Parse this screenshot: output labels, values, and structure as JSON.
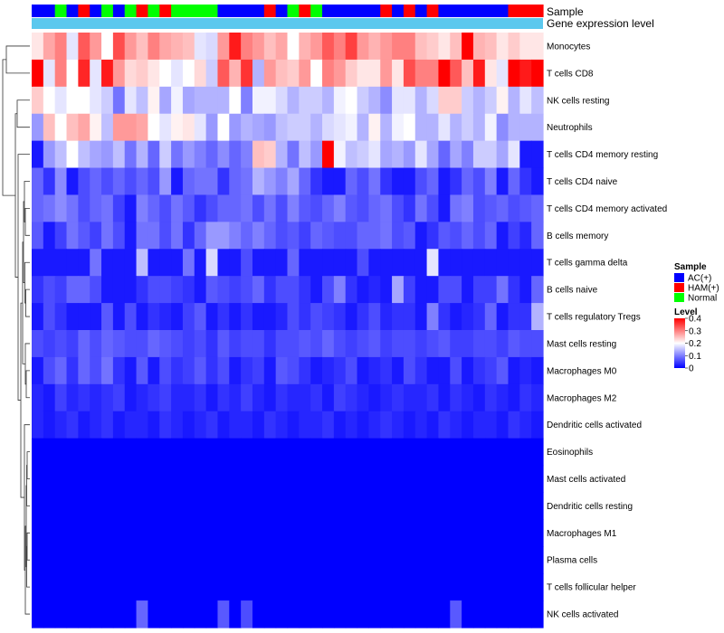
{
  "chart_data": {
    "type": "heatmap",
    "annotation_titles": [
      "Sample",
      "Gene expression level"
    ],
    "rows": [
      "Monocytes",
      "T cells CD8",
      "NK cells resting",
      "Neutrophils",
      "T cells CD4 memory resting",
      "T cells CD4 naive",
      "T cells CD4 memory activated",
      "B cells memory",
      "T cells gamma delta",
      "B cells naive",
      "T cells regulatory  Tregs",
      "Mast cells resting",
      "Macrophages M0",
      "Macrophages M2",
      "Dendritic cells activated",
      "Eosinophils",
      "Mast cells activated",
      "Dendritic cells resting",
      "Macrophages M1",
      "Plasma cells",
      "T cells follicular helper",
      "NK cells activated"
    ],
    "sample_groups": [
      "AC(+)",
      "AC(+)",
      "Normal",
      "AC(+)",
      "HAM(+)",
      "AC(+)",
      "Normal",
      "AC(+)",
      "Normal",
      "HAM(+)",
      "Normal",
      "HAM(+)",
      "Normal",
      "Normal",
      "Normal",
      "Normal",
      "AC(+)",
      "AC(+)",
      "AC(+)",
      "AC(+)",
      "HAM(+)",
      "AC(+)",
      "Normal",
      "HAM(+)",
      "Normal",
      "AC(+)",
      "AC(+)",
      "AC(+)",
      "AC(+)",
      "AC(+)",
      "HAM(+)",
      "AC(+)",
      "HAM(+)",
      "AC(+)",
      "HAM(+)",
      "AC(+)",
      "AC(+)",
      "AC(+)",
      "AC(+)",
      "AC(+)",
      "AC(+)",
      "HAM(+)",
      "HAM(+)",
      "HAM(+)"
    ],
    "values": [
      [
        0.22,
        0.27,
        0.3,
        0.18,
        0.33,
        0.28,
        0.2,
        0.34,
        0.28,
        0.25,
        0.3,
        0.27,
        0.26,
        0.25,
        0.18,
        0.17,
        0.28,
        0.38,
        0.3,
        0.28,
        0.25,
        0.27,
        0.2,
        0.26,
        0.28,
        0.33,
        0.3,
        0.35,
        0.28,
        0.26,
        0.28,
        0.3,
        0.3,
        0.25,
        0.24,
        0.22,
        0.25,
        0.4,
        0.26,
        0.25,
        0.22,
        0.24,
        0.22,
        0.22
      ],
      [
        0.4,
        0.18,
        0.3,
        0.2,
        0.37,
        0.18,
        0.38,
        0.28,
        0.23,
        0.24,
        0.22,
        0.2,
        0.18,
        0.2,
        0.23,
        0.16,
        0.33,
        0.26,
        0.36,
        0.14,
        0.28,
        0.25,
        0.24,
        0.28,
        0.2,
        0.3,
        0.28,
        0.24,
        0.22,
        0.22,
        0.28,
        0.22,
        0.34,
        0.3,
        0.3,
        0.4,
        0.33,
        0.25,
        0.38,
        0.22,
        0.18,
        0.4,
        0.38,
        0.4
      ],
      [
        0.24,
        0.2,
        0.18,
        0.2,
        0.2,
        0.18,
        0.16,
        0.09,
        0.18,
        0.15,
        0.21,
        0.13,
        0.19,
        0.13,
        0.14,
        0.14,
        0.14,
        0.2,
        0.1,
        0.19,
        0.19,
        0.17,
        0.14,
        0.16,
        0.16,
        0.14,
        0.19,
        0.2,
        0.16,
        0.14,
        0.11,
        0.18,
        0.18,
        0.14,
        0.17,
        0.24,
        0.24,
        0.16,
        0.14,
        0.16,
        0.21,
        0.14,
        0.18,
        0.15
      ],
      [
        0.12,
        0.25,
        0.2,
        0.25,
        0.27,
        0.21,
        0.15,
        0.28,
        0.28,
        0.27,
        0.2,
        0.18,
        0.21,
        0.22,
        0.18,
        0.12,
        0.2,
        0.12,
        0.14,
        0.13,
        0.12,
        0.15,
        0.16,
        0.16,
        0.14,
        0.17,
        0.18,
        0.19,
        0.14,
        0.21,
        0.14,
        0.19,
        0.2,
        0.14,
        0.14,
        0.18,
        0.14,
        0.16,
        0.14,
        0.19,
        0.11,
        0.14,
        0.14,
        0.14
      ],
      [
        0.02,
        0.12,
        0.15,
        0.2,
        0.15,
        0.13,
        0.12,
        0.15,
        0.09,
        0.14,
        0.08,
        0.16,
        0.09,
        0.12,
        0.1,
        0.08,
        0.11,
        0.08,
        0.1,
        0.25,
        0.24,
        0.14,
        0.09,
        0.15,
        0.12,
        0.4,
        0.19,
        0.15,
        0.16,
        0.18,
        0.13,
        0.14,
        0.12,
        0.18,
        0.13,
        0.08,
        0.13,
        0.1,
        0.16,
        0.16,
        0.13,
        0.18,
        0.02,
        0.02
      ],
      [
        0.08,
        0.04,
        0.11,
        0.02,
        0.06,
        0.08,
        0.06,
        0.08,
        0.06,
        0.08,
        0.06,
        0.12,
        0.02,
        0.08,
        0.09,
        0.09,
        0.04,
        0.08,
        0.09,
        0.14,
        0.12,
        0.1,
        0.13,
        0.08,
        0.04,
        0.02,
        0.02,
        0.08,
        0.06,
        0.09,
        0.04,
        0.02,
        0.02,
        0.06,
        0.08,
        0.02,
        0.04,
        0.08,
        0.06,
        0.1,
        0.02,
        0.08,
        0.04,
        0.02
      ],
      [
        0.08,
        0.09,
        0.11,
        0.09,
        0.06,
        0.08,
        0.09,
        0.05,
        0.02,
        0.1,
        0.08,
        0.06,
        0.09,
        0.07,
        0.04,
        0.06,
        0.08,
        0.08,
        0.09,
        0.06,
        0.09,
        0.06,
        0.1,
        0.07,
        0.06,
        0.08,
        0.1,
        0.07,
        0.06,
        0.08,
        0.09,
        0.06,
        0.04,
        0.09,
        0.06,
        0.02,
        0.09,
        0.1,
        0.06,
        0.07,
        0.08,
        0.06,
        0.07,
        0.08
      ],
      [
        0.07,
        0.02,
        0.05,
        0.09,
        0.07,
        0.05,
        0.09,
        0.06,
        0.02,
        0.09,
        0.09,
        0.06,
        0.09,
        0.04,
        0.08,
        0.12,
        0.12,
        0.1,
        0.08,
        0.1,
        0.08,
        0.06,
        0.07,
        0.05,
        0.08,
        0.07,
        0.06,
        0.06,
        0.08,
        0.08,
        0.09,
        0.06,
        0.07,
        0.02,
        0.04,
        0.07,
        0.06,
        0.08,
        0.06,
        0.08,
        0.02,
        0.05,
        0.03,
        0.08
      ],
      [
        0.02,
        0.02,
        0.02,
        0.02,
        0.02,
        0.09,
        0.02,
        0.02,
        0.02,
        0.15,
        0.02,
        0.02,
        0.02,
        0.09,
        0.02,
        0.17,
        0.02,
        0.02,
        0.06,
        0.02,
        0.02,
        0.02,
        0.08,
        0.02,
        0.02,
        0.02,
        0.02,
        0.02,
        0.06,
        0.02,
        0.02,
        0.02,
        0.02,
        0.02,
        0.18,
        0.02,
        0.02,
        0.02,
        0.02,
        0.02,
        0.02,
        0.02,
        0.02,
        0.02
      ],
      [
        0.04,
        0.06,
        0.05,
        0.08,
        0.08,
        0.06,
        0.02,
        0.02,
        0.02,
        0.04,
        0.06,
        0.06,
        0.05,
        0.04,
        0.02,
        0.07,
        0.06,
        0.05,
        0.06,
        0.08,
        0.04,
        0.06,
        0.06,
        0.04,
        0.02,
        0.06,
        0.1,
        0.04,
        0.02,
        0.03,
        0.02,
        0.13,
        0.05,
        0.02,
        0.02,
        0.06,
        0.06,
        0.02,
        0.05,
        0.05,
        0.09,
        0.04,
        0.02,
        0.08
      ],
      [
        0.02,
        0.06,
        0.04,
        0.02,
        0.02,
        0.02,
        0.07,
        0.02,
        0.06,
        0.02,
        0.04,
        0.03,
        0.02,
        0.05,
        0.07,
        0.02,
        0.04,
        0.02,
        0.04,
        0.02,
        0.02,
        0.03,
        0.06,
        0.04,
        0.06,
        0.05,
        0.04,
        0.02,
        0.04,
        0.06,
        0.03,
        0.04,
        0.04,
        0.02,
        0.1,
        0.04,
        0.02,
        0.03,
        0.04,
        0.08,
        0.02,
        0.04,
        0.04,
        0.14
      ],
      [
        0.06,
        0.05,
        0.06,
        0.05,
        0.08,
        0.06,
        0.08,
        0.07,
        0.06,
        0.06,
        0.08,
        0.07,
        0.06,
        0.05,
        0.06,
        0.04,
        0.07,
        0.05,
        0.06,
        0.06,
        0.04,
        0.06,
        0.06,
        0.07,
        0.06,
        0.08,
        0.06,
        0.05,
        0.06,
        0.07,
        0.05,
        0.06,
        0.06,
        0.05,
        0.06,
        0.07,
        0.05,
        0.05,
        0.06,
        0.06,
        0.05,
        0.07,
        0.06,
        0.06
      ],
      [
        0.02,
        0.06,
        0.08,
        0.04,
        0.08,
        0.06,
        0.09,
        0.04,
        0.02,
        0.07,
        0.02,
        0.06,
        0.04,
        0.05,
        0.07,
        0.04,
        0.06,
        0.02,
        0.04,
        0.05,
        0.02,
        0.07,
        0.06,
        0.04,
        0.02,
        0.03,
        0.04,
        0.06,
        0.02,
        0.03,
        0.04,
        0.02,
        0.06,
        0.04,
        0.02,
        0.02,
        0.06,
        0.02,
        0.04,
        0.05,
        0.07,
        0.02,
        0.03,
        0.02
      ],
      [
        0.03,
        0.02,
        0.05,
        0.03,
        0.04,
        0.03,
        0.04,
        0.05,
        0.02,
        0.03,
        0.04,
        0.05,
        0.03,
        0.03,
        0.04,
        0.02,
        0.04,
        0.03,
        0.05,
        0.03,
        0.02,
        0.04,
        0.03,
        0.03,
        0.04,
        0.02,
        0.05,
        0.04,
        0.03,
        0.02,
        0.03,
        0.04,
        0.03,
        0.03,
        0.04,
        0.02,
        0.04,
        0.03,
        0.02,
        0.04,
        0.03,
        0.02,
        0.04,
        0.03
      ],
      [
        0.03,
        0.02,
        0.03,
        0.04,
        0.02,
        0.03,
        0.04,
        0.02,
        0.03,
        0.03,
        0.02,
        0.04,
        0.03,
        0.02,
        0.03,
        0.04,
        0.02,
        0.03,
        0.03,
        0.02,
        0.04,
        0.03,
        0.02,
        0.03,
        0.03,
        0.04,
        0.02,
        0.03,
        0.02,
        0.03,
        0.04,
        0.03,
        0.02,
        0.03,
        0.02,
        0.04,
        0.03,
        0.02,
        0.03,
        0.03,
        0.02,
        0.04,
        0.03,
        0.02
      ],
      [
        0.0,
        0.0,
        0.0,
        0.0,
        0.0,
        0.0,
        0.0,
        0.0,
        0.0,
        0.0,
        0.0,
        0.0,
        0.0,
        0.0,
        0.0,
        0.0,
        0.0,
        0.0,
        0.0,
        0.0,
        0.0,
        0.0,
        0.0,
        0.0,
        0.0,
        0.0,
        0.0,
        0.0,
        0.0,
        0.0,
        0.0,
        0.0,
        0.0,
        0.0,
        0.0,
        0.0,
        0.0,
        0.0,
        0.0,
        0.0,
        0.0,
        0.0,
        0.0,
        0.0
      ],
      [
        0.0,
        0.0,
        0.0,
        0.0,
        0.0,
        0.0,
        0.0,
        0.0,
        0.0,
        0.0,
        0.0,
        0.0,
        0.0,
        0.0,
        0.0,
        0.0,
        0.0,
        0.0,
        0.0,
        0.0,
        0.0,
        0.0,
        0.0,
        0.0,
        0.0,
        0.0,
        0.0,
        0.0,
        0.0,
        0.0,
        0.0,
        0.0,
        0.0,
        0.0,
        0.0,
        0.0,
        0.0,
        0.0,
        0.0,
        0.0,
        0.0,
        0.0,
        0.0,
        0.0
      ],
      [
        0.0,
        0.0,
        0.0,
        0.0,
        0.0,
        0.0,
        0.0,
        0.0,
        0.0,
        0.0,
        0.0,
        0.0,
        0.0,
        0.0,
        0.0,
        0.0,
        0.0,
        0.0,
        0.0,
        0.0,
        0.0,
        0.0,
        0.0,
        0.0,
        0.0,
        0.0,
        0.0,
        0.0,
        0.0,
        0.0,
        0.0,
        0.0,
        0.0,
        0.0,
        0.0,
        0.0,
        0.0,
        0.0,
        0.0,
        0.0,
        0.0,
        0.0,
        0.0,
        0.0
      ],
      [
        0.0,
        0.0,
        0.0,
        0.0,
        0.0,
        0.0,
        0.0,
        0.0,
        0.0,
        0.0,
        0.0,
        0.0,
        0.0,
        0.0,
        0.0,
        0.0,
        0.0,
        0.0,
        0.0,
        0.0,
        0.0,
        0.0,
        0.0,
        0.0,
        0.0,
        0.0,
        0.0,
        0.0,
        0.0,
        0.0,
        0.0,
        0.0,
        0.0,
        0.0,
        0.0,
        0.0,
        0.0,
        0.0,
        0.0,
        0.0,
        0.0,
        0.0,
        0.0,
        0.0
      ],
      [
        0.0,
        0.0,
        0.0,
        0.0,
        0.0,
        0.0,
        0.0,
        0.0,
        0.0,
        0.0,
        0.0,
        0.0,
        0.0,
        0.0,
        0.0,
        0.0,
        0.0,
        0.0,
        0.0,
        0.0,
        0.0,
        0.0,
        0.0,
        0.0,
        0.0,
        0.0,
        0.0,
        0.0,
        0.0,
        0.0,
        0.0,
        0.0,
        0.0,
        0.0,
        0.0,
        0.0,
        0.0,
        0.0,
        0.0,
        0.0,
        0.0,
        0.0,
        0.0,
        0.0
      ],
      [
        0.0,
        0.0,
        0.0,
        0.0,
        0.0,
        0.0,
        0.0,
        0.0,
        0.0,
        0.0,
        0.0,
        0.0,
        0.0,
        0.0,
        0.0,
        0.0,
        0.0,
        0.0,
        0.0,
        0.0,
        0.0,
        0.0,
        0.0,
        0.0,
        0.0,
        0.0,
        0.0,
        0.0,
        0.0,
        0.0,
        0.0,
        0.0,
        0.0,
        0.0,
        0.0,
        0.0,
        0.0,
        0.0,
        0.0,
        0.0,
        0.0,
        0.0,
        0.0,
        0.0
      ],
      [
        0.0,
        0.0,
        0.0,
        0.0,
        0.0,
        0.0,
        0.0,
        0.0,
        0.0,
        0.08,
        0.0,
        0.0,
        0.0,
        0.0,
        0.0,
        0.0,
        0.07,
        0.0,
        0.06,
        0.0,
        0.0,
        0.0,
        0.0,
        0.0,
        0.0,
        0.0,
        0.0,
        0.0,
        0.0,
        0.0,
        0.0,
        0.0,
        0.0,
        0.0,
        0.0,
        0.0,
        0.07,
        0.0,
        0.0,
        0.0,
        0.0,
        0.0,
        0.0,
        0.0
      ]
    ],
    "legends": {
      "sample": {
        "title": "Sample",
        "items": [
          {
            "label": "AC(+)",
            "color": "#0000ff"
          },
          {
            "label": "HAM(+)",
            "color": "#ff0000"
          },
          {
            "label": "Normal",
            "color": "#00ff00"
          }
        ]
      },
      "level": {
        "title": "Level",
        "ticks": [
          "0.4",
          "0.3",
          "0.2",
          "0.1",
          "0"
        ],
        "range": [
          0,
          0.4
        ],
        "colors": [
          "#0000ff",
          "#ffffff",
          "#ff0000"
        ]
      }
    },
    "gene_expression_bar_color": "#5bc8ee"
  }
}
